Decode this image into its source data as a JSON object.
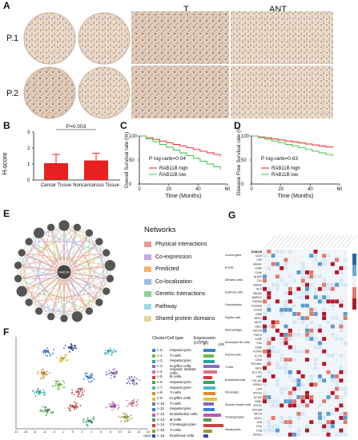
{
  "panels": {
    "A": "A",
    "B": "B",
    "C": "C",
    "D": "D",
    "E": "E",
    "F": "F",
    "G": "G"
  },
  "panelA": {
    "col_t": "T",
    "col_ant": "ANT",
    "row1": "P.1",
    "row2": "P.2"
  },
  "panelB": {
    "ylabel": "H-score",
    "pval": "P=0.003",
    "categories": [
      "Cancer Tissue",
      "Noncancerous Tissue"
    ],
    "values": [
      1.05,
      1.22
    ],
    "errors": [
      0.55,
      0.45
    ],
    "yticks": [
      "0",
      "1",
      "2",
      "3"
    ],
    "bar_color": "#e8201f"
  },
  "panelC": {
    "ylabel": "Overall Survival rate (%)",
    "xlabel": "Time (Months)",
    "pval": "P log-rank=0.04",
    "legend": [
      "RAB11B high",
      "RAB11B low"
    ],
    "xticks": [
      "0",
      "20",
      "40",
      "60"
    ],
    "yticks": [
      "0",
      "50",
      "100"
    ]
  },
  "panelD": {
    "ylabel": "Disease Free Survival rate (%)",
    "xlabel": "Time (Months)",
    "pval": "P log-rank=0.63",
    "legend": [
      "RAB11B high",
      "RAB11B low"
    ],
    "xticks": [
      "0",
      "20",
      "40",
      "60"
    ],
    "yticks": [
      "0",
      "50",
      "100"
    ]
  },
  "panelE": {
    "title": "Networks",
    "legend": [
      {
        "label": "Physical Interactions",
        "color": "#e69a8f"
      },
      {
        "label": "Co-expression",
        "color": "#c7a6d8"
      },
      {
        "label": "Predicted",
        "color": "#f2b36b"
      },
      {
        "label": "Co-localization",
        "color": "#9bbbe5"
      },
      {
        "label": "Genetic Interactions",
        "color": "#8fd18d"
      },
      {
        "label": "Pathway",
        "color": "#9fd8e6"
      },
      {
        "label": "Shared protein domains",
        "color": "#e6d59b"
      }
    ],
    "center": "RAB11B"
  },
  "panelF": {
    "header_cluster": "Cluster",
    "header_type": "Cell type",
    "header_expr": "Expression (nTPM)",
    "scale": [
      "0",
      "100"
    ],
    "clusters": [
      {
        "c": "c-0",
        "t": "Hepatocytes",
        "color": "#3d86c6",
        "v": 0.55
      },
      {
        "c": "c-1",
        "t": "T-cells",
        "color": "#6cbf4a",
        "v": 0.45
      },
      {
        "c": "c-2",
        "t": "Hepatocytes",
        "color": "#2ca0a4",
        "v": 0.5
      },
      {
        "c": "c-3",
        "t": "Kupffer cells",
        "color": "#8b6bbf",
        "v": 0.7
      },
      {
        "c": "c-4",
        "t": "Hepatic stellate cells",
        "color": "#d86f9a",
        "v": 0.6
      },
      {
        "c": "c-5",
        "t": "B-cells",
        "color": "#d43a3a",
        "v": 0.4
      },
      {
        "c": "c-6",
        "t": "Hepatocytes",
        "color": "#35a85e",
        "v": 0.5
      },
      {
        "c": "c-7",
        "t": "Hepatocytes",
        "color": "#4ab8c8",
        "v": 0.55
      },
      {
        "c": "c-8",
        "t": "T-cells",
        "color": "#e38a2a",
        "v": 0.55
      },
      {
        "c": "c-9",
        "t": "Kupffer cells",
        "color": "#e1c23b",
        "v": 0.6
      },
      {
        "c": "c-10",
        "t": "T-cells",
        "color": "#7e6eb0",
        "v": 0.45
      },
      {
        "c": "c-11",
        "t": "Hepatocytes",
        "color": "#3a7fd6",
        "v": 0.5
      },
      {
        "c": "c-12",
        "t": "Endothelial cells",
        "color": "#b85bb3",
        "v": 0.8
      },
      {
        "c": "c-13",
        "t": "B-cells",
        "color": "#4d9b4d",
        "v": 0.35
      },
      {
        "c": "c-14",
        "t": "Cholangiocytes",
        "color": "#c94343",
        "v": 0.9
      },
      {
        "c": "c-15",
        "t": "T-cells",
        "color": "#9a9a2f",
        "v": 0.4
      },
      {
        "c": "c-16",
        "t": "Erythroid cells",
        "color": "#2f4f9a",
        "v": 0.2
      }
    ],
    "xticks": [
      "-12",
      "-10",
      "-8",
      "-6",
      "-4",
      "-2",
      "0",
      "2",
      "4",
      "6",
      "8",
      "10",
      "12",
      "14",
      "16"
    ],
    "xlabel": "UMAP1"
  },
  "panelG": {
    "row_groups": [
      "Current gene",
      "B-cells",
      "Dendritic cells",
      "Erythroid cells",
      "Granulocytes",
      "Kupffer cells",
      "Macrophages",
      "Monocytes NK-cells",
      "Plasma cells",
      "T-cells",
      "Endothelial cells",
      "Fibroblasts",
      "Smooth muscle cells",
      "Cholangiocytes",
      "Hepatocytes"
    ],
    "genes": [
      "RAB11B",
      "CD19",
      "CR2",
      "MS4A1",
      "CD86",
      "CLNK",
      "ALAS2",
      "CA1",
      "CEBPE",
      "HCC",
      "MS4A2",
      "MARCO",
      "S100A8",
      "FCGR3A",
      "CD163",
      "CD68",
      "MRC1",
      "NKG7",
      "GNLY",
      "IGKJ24",
      "PMCH",
      "CD3E",
      "CD4",
      "CD8A",
      "FOXP3",
      "IL17A",
      "CD34",
      "PECAM1",
      "SELE",
      "SLC1A1",
      "VWF",
      "COL1A1",
      "PRRX1",
      "LUM",
      "MYH11",
      "ACTA2",
      "CNN1",
      "MYH11",
      "EPCAM",
      "KRT19",
      "MUC1",
      "ALB",
      "FGA",
      "FGB",
      "APOA1"
    ],
    "scale": [
      "4",
      "2",
      "0",
      "-2",
      "-4"
    ]
  }
}
